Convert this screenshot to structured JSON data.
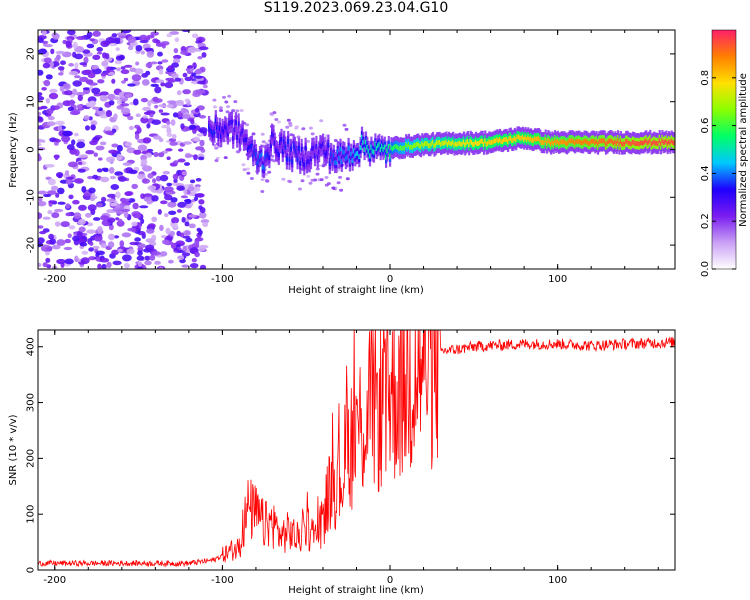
{
  "title": "S119.2023.069.23.04.G10",
  "chart_data": [
    {
      "type": "heatmap",
      "xlabel": "Height of straight line (km)",
      "ylabel": "Frequency (Hz)",
      "xlim": [
        -210,
        170
      ],
      "ylim": [
        -25,
        25
      ],
      "xticks": [
        -200,
        -100,
        0,
        100
      ],
      "yticks": [
        -20,
        -10,
        0,
        10,
        20
      ],
      "colorbar": {
        "label": "Normalized spectral amplitude",
        "range": [
          0,
          1
        ],
        "ticks": [
          0.0,
          0.2,
          0.4,
          0.6,
          0.8
        ],
        "colors": [
          "#ffffff",
          "#c9a0f5",
          "#7a1cf0",
          "#1f00ff",
          "#00c8ff",
          "#00ff66",
          "#8cff00",
          "#ffe000",
          "#ff8000",
          "#ff1f6a"
        ]
      },
      "signal_track": [
        {
          "x": -105,
          "f": 4.0,
          "a": 0.35
        },
        {
          "x": -95,
          "f": 4.5,
          "a": 0.3
        },
        {
          "x": -88,
          "f": 3.0,
          "a": 0.3
        },
        {
          "x": -82,
          "f": -1.0,
          "a": 0.35
        },
        {
          "x": -76,
          "f": -2.5,
          "a": 0.4
        },
        {
          "x": -70,
          "f": 1.5,
          "a": 0.3
        },
        {
          "x": -62,
          "f": 0.0,
          "a": 0.35
        },
        {
          "x": -55,
          "f": -1.5,
          "a": 0.35
        },
        {
          "x": -48,
          "f": -1.0,
          "a": 0.3
        },
        {
          "x": -40,
          "f": 0.0,
          "a": 0.3
        },
        {
          "x": -32,
          "f": -2.0,
          "a": 0.4
        },
        {
          "x": -25,
          "f": -1.0,
          "a": 0.4
        },
        {
          "x": -15,
          "f": 1.0,
          "a": 0.5
        },
        {
          "x": -5,
          "f": -0.5,
          "a": 0.5
        },
        {
          "x": 5,
          "f": 0.5,
          "a": 0.6
        },
        {
          "x": 20,
          "f": 1.0,
          "a": 0.7
        },
        {
          "x": 40,
          "f": 1.3,
          "a": 0.75
        },
        {
          "x": 60,
          "f": 1.5,
          "a": 0.8
        },
        {
          "x": 80,
          "f": 2.5,
          "a": 0.8
        },
        {
          "x": 95,
          "f": 1.5,
          "a": 0.85
        },
        {
          "x": 120,
          "f": 1.5,
          "a": 0.9
        },
        {
          "x": 150,
          "f": 1.5,
          "a": 0.95
        },
        {
          "x": 170,
          "f": 1.5,
          "a": 0.95
        }
      ]
    },
    {
      "type": "line",
      "xlabel": "Height of straight line (km)",
      "ylabel": "SNR (10 * v/v)",
      "xlim": [
        -210,
        170
      ],
      "ylim": [
        0,
        430
      ],
      "xticks": [
        -200,
        -100,
        0,
        100
      ],
      "yticks": [
        0,
        100,
        200,
        300,
        400
      ],
      "color": "#ff0000",
      "series": [
        {
          "x": [
            -210,
            -180,
            -150,
            -120,
            -105,
            -95,
            -90,
            -85,
            -80,
            -75,
            -70,
            -65,
            -60,
            -55,
            -50,
            -45,
            -40,
            -35,
            -30,
            -25,
            -20,
            -15,
            -10,
            -5,
            0,
            5,
            10,
            15,
            20,
            25,
            30,
            40,
            50,
            60,
            80,
            100,
            120,
            140,
            170
          ],
          "values": [
            12,
            12,
            12,
            12,
            18,
            35,
            40,
            110,
            100,
            80,
            85,
            60,
            70,
            55,
            80,
            60,
            90,
            160,
            160,
            220,
            250,
            270,
            300,
            290,
            320,
            330,
            340,
            360,
            380,
            385,
            392,
            395,
            400,
            402,
            405,
            405,
            402,
            405,
            408
          ]
        }
      ]
    }
  ]
}
